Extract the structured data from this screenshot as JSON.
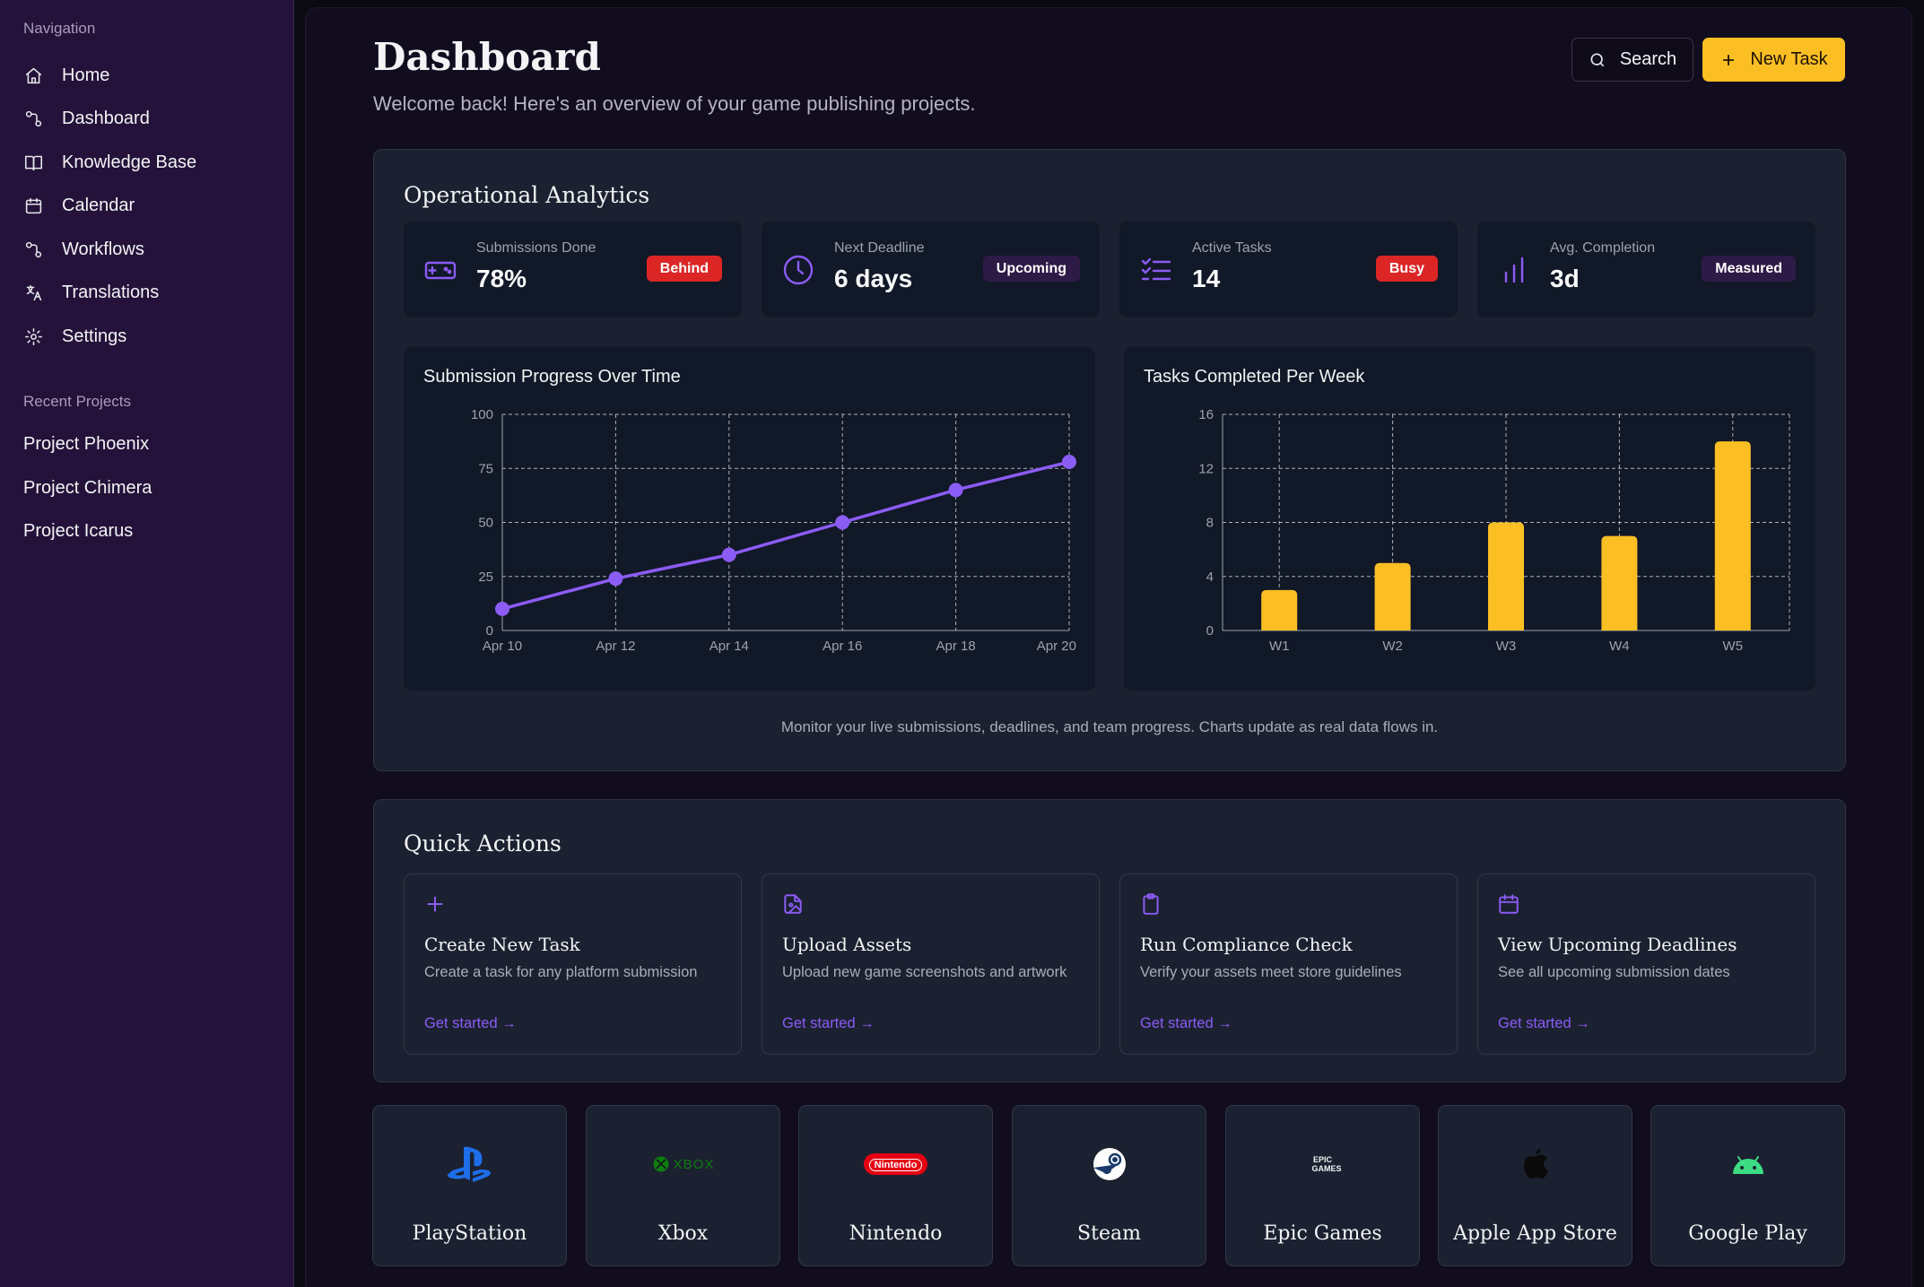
{
  "sidebar": {
    "nav_heading": "Navigation",
    "items": [
      {
        "label": "Home",
        "icon": "home-icon"
      },
      {
        "label": "Dashboard",
        "icon": "workflow-icon"
      },
      {
        "label": "Knowledge Base",
        "icon": "book-icon"
      },
      {
        "label": "Calendar",
        "icon": "calendar-icon"
      },
      {
        "label": "Workflows",
        "icon": "workflow-icon"
      },
      {
        "label": "Translations",
        "icon": "translate-icon"
      },
      {
        "label": "Settings",
        "icon": "gear-icon"
      }
    ],
    "recent_heading": "Recent Projects",
    "projects": [
      "Project Phoenix",
      "Project Chimera",
      "Project Icarus"
    ]
  },
  "header": {
    "title": "Dashboard",
    "subtitle": "Welcome back! Here's an overview of your game publishing projects.",
    "search_label": "Search",
    "new_task_label": "New Task"
  },
  "analytics": {
    "title": "Operational Analytics",
    "stats": [
      {
        "label": "Submissions Done",
        "value": "78%",
        "badge": "Behind",
        "badge_color": "#dc2626",
        "icon": "gamepad-icon"
      },
      {
        "label": "Next Deadline",
        "value": "6 days",
        "badge": "Upcoming",
        "badge_color": "#2e1a47",
        "icon": "clock-icon"
      },
      {
        "label": "Active Tasks",
        "value": "14",
        "badge": "Busy",
        "badge_color": "#dc2626",
        "icon": "checklist-icon"
      },
      {
        "label": "Avg. Completion",
        "value": "3d",
        "badge": "Measured",
        "badge_color": "#2e1a47",
        "icon": "bar-chart-icon"
      }
    ],
    "footnote": "Monitor your live submissions, deadlines, and team progress. Charts update as real data flows in."
  },
  "chart_data": [
    {
      "type": "line",
      "title": "Submission Progress Over Time",
      "x": [
        "Apr 10",
        "Apr 12",
        "Apr 14",
        "Apr 16",
        "Apr 18",
        "Apr 20"
      ],
      "series": [
        {
          "values": [
            10,
            24,
            35,
            50,
            65,
            78
          ],
          "color": "#8b5cf6"
        }
      ],
      "ylim": [
        0,
        100
      ],
      "yticks": [
        0,
        25,
        50,
        75,
        100
      ],
      "grid": true
    },
    {
      "type": "bar",
      "title": "Tasks Completed Per Week",
      "categories": [
        "W1",
        "W2",
        "W3",
        "W4",
        "W5"
      ],
      "values": [
        3,
        5,
        8,
        7,
        14
      ],
      "color": "#fbbf24",
      "ylim": [
        0,
        16
      ],
      "yticks": [
        0,
        4,
        8,
        12,
        16
      ],
      "grid": true
    }
  ],
  "quick_actions": {
    "title": "Quick Actions",
    "items": [
      {
        "title": "Create New Task",
        "desc": "Create a task for any platform submission",
        "link": "Get started →",
        "icon": "plus-icon"
      },
      {
        "title": "Upload Assets",
        "desc": "Upload new game screenshots and artwork",
        "link": "Get started →",
        "icon": "file-image-icon"
      },
      {
        "title": "Run Compliance Check",
        "desc": "Verify your assets meet store guidelines",
        "link": "Get started →",
        "icon": "clipboard-icon"
      },
      {
        "title": "View Upcoming Deadlines",
        "desc": "See all upcoming submission dates",
        "link": "Get started →",
        "icon": "calendar-icon"
      }
    ]
  },
  "platforms": [
    {
      "name": "PlayStation",
      "icon": "playstation-logo-icon"
    },
    {
      "name": "Xbox",
      "icon": "xbox-logo-icon",
      "logo_text": "XBOX"
    },
    {
      "name": "Nintendo",
      "icon": "nintendo-logo-icon",
      "logo_text": "Nintendo"
    },
    {
      "name": "Steam",
      "icon": "steam-logo-icon"
    },
    {
      "name": "Epic Games",
      "icon": "epic-games-logo-icon",
      "logo_text": "EPIC GAMES"
    },
    {
      "name": "Apple App Store",
      "icon": "apple-logo-icon"
    },
    {
      "name": "Google Play",
      "icon": "android-logo-icon"
    }
  ],
  "colors": {
    "accent": "#8b5cf6",
    "primary_button": "#fbbf24",
    "danger": "#dc2626"
  }
}
